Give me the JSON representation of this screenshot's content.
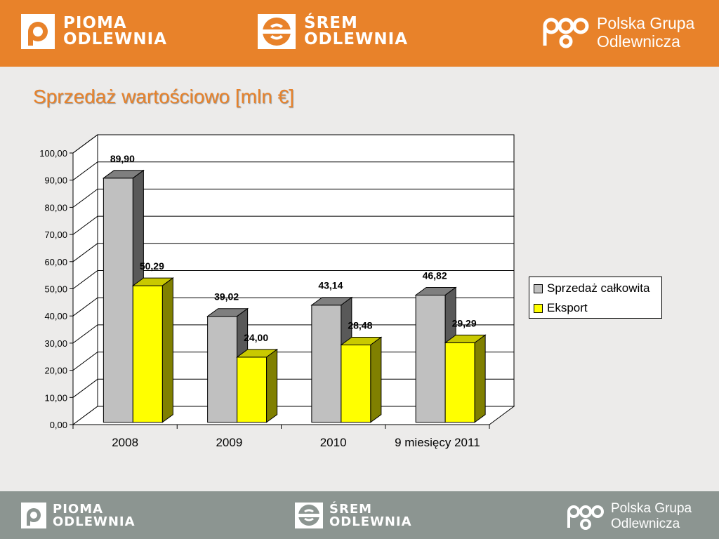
{
  "header": {
    "pioma": {
      "line1": "PIOMA",
      "line2": "ODLEWNIA"
    },
    "srem": {
      "line1": "ŚREM",
      "line2": "ODLEWNIA"
    },
    "pgo": {
      "mark": "pgo",
      "line1": "Polska Grupa",
      "line2": "Odlewnicza"
    }
  },
  "footer": {
    "pioma": {
      "line1": "PIOMA",
      "line2": "ODLEWNIA"
    },
    "srem": {
      "line1": "ŚREM",
      "line2": "ODLEWNIA"
    },
    "pgo": {
      "mark": "pgo",
      "line1": "Polska Grupa",
      "line2": "Odlewnicza"
    }
  },
  "slide": {
    "title": "Sprzedaż wartościowo [mln €]"
  },
  "colors": {
    "orange": "#e8822a",
    "footer_gray": "#8c9591",
    "series1": "#c0c0c0",
    "series2": "#ffff00"
  },
  "chart_data": {
    "type": "bar",
    "title": "",
    "categories": [
      "2008",
      "2009",
      "2010",
      "9 miesięcy 2011"
    ],
    "series": [
      {
        "name": "Sprzedaż całkowita",
        "values": [
          89.9,
          39.02,
          43.14,
          46.82
        ],
        "labels": [
          "89,90",
          "39,02",
          "43,14",
          "46,82"
        ]
      },
      {
        "name": "Eksport",
        "values": [
          50.29,
          24.0,
          28.48,
          29.29
        ],
        "labels": [
          "50,29",
          "24,00",
          "28,48",
          "29,29"
        ]
      }
    ],
    "yticks": [
      "0,00",
      "10,00",
      "20,00",
      "30,00",
      "40,00",
      "50,00",
      "60,00",
      "70,00",
      "80,00",
      "90,00",
      "100,00"
    ],
    "ylim": [
      0,
      100
    ],
    "grid": true,
    "legend_position": "right",
    "style": "3d-clustered-columns"
  }
}
